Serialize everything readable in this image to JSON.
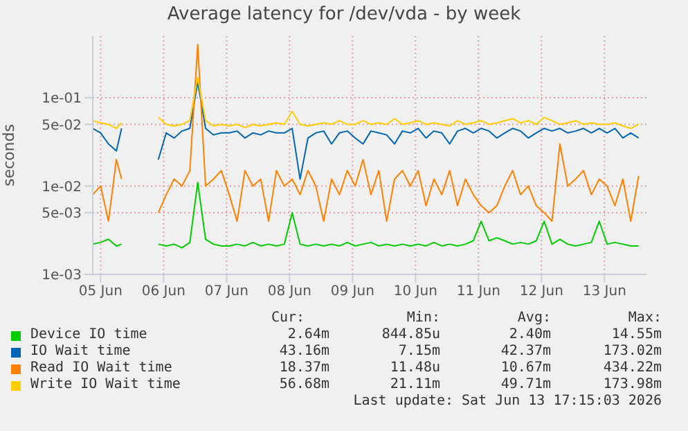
{
  "chart_data": {
    "type": "line",
    "title": "Average latency for /dev/vda - by week",
    "ylabel": "seconds",
    "log": true,
    "grid": true,
    "legend": "bottom",
    "marker": "none",
    "line_style": "solid",
    "xlim": [
      "2026-06-04T21:00",
      "2026-06-13T16:00"
    ],
    "xticks": [
      {
        "value": "2026-06-05T00:00",
        "label": "05 Jun"
      },
      {
        "value": "2026-06-06T00:00",
        "label": "06 Jun"
      },
      {
        "value": "2026-06-07T00:00",
        "label": "07 Jun"
      },
      {
        "value": "2026-06-08T00:00",
        "label": "08 Jun"
      },
      {
        "value": "2026-06-09T00:00",
        "label": "09 Jun"
      },
      {
        "value": "2026-06-10T00:00",
        "label": "10 Jun"
      },
      {
        "value": "2026-06-11T00:00",
        "label": "11 Jun"
      },
      {
        "value": "2026-06-12T00:00",
        "label": "12 Jun"
      },
      {
        "value": "2026-06-13T00:00",
        "label": "13 Jun"
      }
    ],
    "ylim": [
      0.001,
      0.5
    ],
    "yticks": [
      {
        "value": 0.001,
        "label": "1e-03"
      },
      {
        "value": 0.005,
        "label": "5e-03"
      },
      {
        "value": 0.01,
        "label": "1e-02"
      },
      {
        "value": 0.05,
        "label": "5e-02"
      },
      {
        "value": 0.1,
        "label": "1e-01"
      }
    ],
    "x": [
      "2026-06-04T21:00",
      "2026-06-05T00:00",
      "2026-06-05T03:00",
      "2026-06-05T06:00",
      "2026-06-05T08:00",
      "2026-06-05T15:00",
      "2026-06-05T22:00",
      "2026-06-06T01:00",
      "2026-06-06T04:00",
      "2026-06-06T07:00",
      "2026-06-06T10:00",
      "2026-06-06T13:00",
      "2026-06-06T16:00",
      "2026-06-06T19:00",
      "2026-06-06T22:00",
      "2026-06-07T01:00",
      "2026-06-07T04:00",
      "2026-06-07T07:00",
      "2026-06-07T10:00",
      "2026-06-07T13:00",
      "2026-06-07T16:00",
      "2026-06-07T19:00",
      "2026-06-07T22:00",
      "2026-06-08T01:00",
      "2026-06-08T04:00",
      "2026-06-08T07:00",
      "2026-06-08T10:00",
      "2026-06-08T13:00",
      "2026-06-08T16:00",
      "2026-06-08T19:00",
      "2026-06-08T22:00",
      "2026-06-09T01:00",
      "2026-06-09T04:00",
      "2026-06-09T07:00",
      "2026-06-09T10:00",
      "2026-06-09T13:00",
      "2026-06-09T16:00",
      "2026-06-09T19:00",
      "2026-06-09T22:00",
      "2026-06-10T01:00",
      "2026-06-10T04:00",
      "2026-06-10T07:00",
      "2026-06-10T10:00",
      "2026-06-10T13:00",
      "2026-06-10T16:00",
      "2026-06-10T19:00",
      "2026-06-10T22:00",
      "2026-06-11T01:00",
      "2026-06-11T04:00",
      "2026-06-11T07:00",
      "2026-06-11T10:00",
      "2026-06-11T13:00",
      "2026-06-11T16:00",
      "2026-06-11T19:00",
      "2026-06-11T22:00",
      "2026-06-12T01:00",
      "2026-06-12T04:00",
      "2026-06-12T07:00",
      "2026-06-12T10:00",
      "2026-06-12T13:00",
      "2026-06-12T16:00",
      "2026-06-12T19:00",
      "2026-06-12T22:00",
      "2026-06-13T01:00",
      "2026-06-13T04:00",
      "2026-06-13T07:00",
      "2026-06-13T10:00",
      "2026-06-13T13:00"
    ],
    "series": [
      {
        "name": "Device IO time",
        "color": "#00cc00",
        "values": [
          0.0022,
          0.0023,
          0.0025,
          0.0021,
          0.0022,
          null,
          0.0022,
          0.0021,
          0.0022,
          0.002,
          0.0023,
          0.011,
          0.0025,
          0.0022,
          0.0021,
          0.0021,
          0.0022,
          0.0021,
          0.0023,
          0.0021,
          0.0022,
          0.0021,
          0.0022,
          0.005,
          0.0022,
          0.0021,
          0.0022,
          0.0021,
          0.0022,
          0.0021,
          0.0023,
          0.0021,
          0.0022,
          0.0023,
          0.0021,
          0.0022,
          0.0021,
          0.0022,
          0.0021,
          0.0022,
          0.0021,
          0.0023,
          0.0021,
          0.0022,
          0.0021,
          0.0022,
          0.0024,
          0.004,
          0.0024,
          0.0026,
          0.0024,
          0.0022,
          0.0023,
          0.0022,
          0.0024,
          0.004,
          0.0022,
          0.0025,
          0.0022,
          0.0021,
          0.0022,
          0.0023,
          0.004,
          0.0022,
          0.0023,
          0.0022,
          0.0021,
          0.0021
        ]
      },
      {
        "name": "IO Wait time",
        "color": "#0066b3",
        "values": [
          0.045,
          0.04,
          0.03,
          0.025,
          0.045,
          null,
          0.02,
          0.04,
          0.035,
          0.042,
          0.045,
          0.15,
          0.045,
          0.038,
          0.04,
          0.04,
          0.042,
          0.035,
          0.04,
          0.038,
          0.042,
          0.04,
          0.04,
          0.045,
          0.012,
          0.035,
          0.04,
          0.042,
          0.03,
          0.04,
          0.042,
          0.035,
          0.03,
          0.042,
          0.04,
          0.038,
          0.03,
          0.042,
          0.04,
          0.045,
          0.035,
          0.042,
          0.04,
          0.03,
          0.042,
          0.045,
          0.04,
          0.045,
          0.042,
          0.035,
          0.04,
          0.045,
          0.042,
          0.035,
          0.04,
          0.045,
          0.042,
          0.045,
          0.04,
          0.042,
          0.045,
          0.04,
          0.045,
          0.04,
          0.045,
          0.035,
          0.04,
          0.035
        ]
      },
      {
        "name": "Read IO Wait time",
        "color": "#ff8000",
        "values": [
          0.008,
          0.01,
          0.004,
          0.02,
          0.012,
          null,
          0.005,
          0.008,
          0.012,
          0.01,
          0.015,
          0.4,
          0.01,
          0.012,
          0.015,
          0.008,
          0.004,
          0.015,
          0.01,
          0.012,
          0.004,
          0.015,
          0.01,
          0.012,
          0.008,
          0.015,
          0.01,
          0.004,
          0.012,
          0.008,
          0.015,
          0.01,
          0.02,
          0.008,
          0.015,
          0.004,
          0.012,
          0.015,
          0.01,
          0.015,
          0.006,
          0.012,
          0.008,
          0.015,
          0.006,
          0.012,
          0.008,
          0.006,
          0.005,
          0.006,
          0.01,
          0.015,
          0.008,
          0.01,
          0.006,
          0.005,
          0.004,
          0.03,
          0.01,
          0.012,
          0.015,
          0.008,
          0.012,
          0.01,
          0.006,
          0.012,
          0.004,
          0.013
        ]
      },
      {
        "name": "Write IO Wait time",
        "color": "#ffcc00",
        "values": [
          0.055,
          0.052,
          0.05,
          0.045,
          0.052,
          null,
          0.06,
          0.05,
          0.048,
          0.05,
          0.055,
          0.17,
          0.055,
          0.048,
          0.05,
          0.048,
          0.05,
          0.046,
          0.05,
          0.048,
          0.05,
          0.052,
          0.05,
          0.07,
          0.05,
          0.048,
          0.05,
          0.052,
          0.05,
          0.055,
          0.05,
          0.05,
          0.055,
          0.05,
          0.052,
          0.05,
          0.058,
          0.05,
          0.052,
          0.055,
          0.05,
          0.052,
          0.05,
          0.048,
          0.055,
          0.05,
          0.052,
          0.055,
          0.05,
          0.052,
          0.055,
          0.058,
          0.052,
          0.055,
          0.05,
          0.06,
          0.055,
          0.05,
          0.052,
          0.055,
          0.05,
          0.052,
          0.05,
          0.05,
          0.052,
          0.048,
          0.045,
          0.05
        ]
      }
    ],
    "annotations": [
      "Cur:",
      "Min:",
      "Avg:",
      "Max:",
      "2.64m",
      "844.85u",
      "2.40m",
      "14.55m",
      "43.16m",
      "7.15m",
      "42.37m",
      "173.02m",
      "18.37m",
      "11.48u",
      "10.67m",
      "434.22m",
      "56.68m",
      "21.11m",
      "49.71m",
      "173.98m",
      "Last update: Sat Jun 13 17:15:03 2026"
    ]
  }
}
